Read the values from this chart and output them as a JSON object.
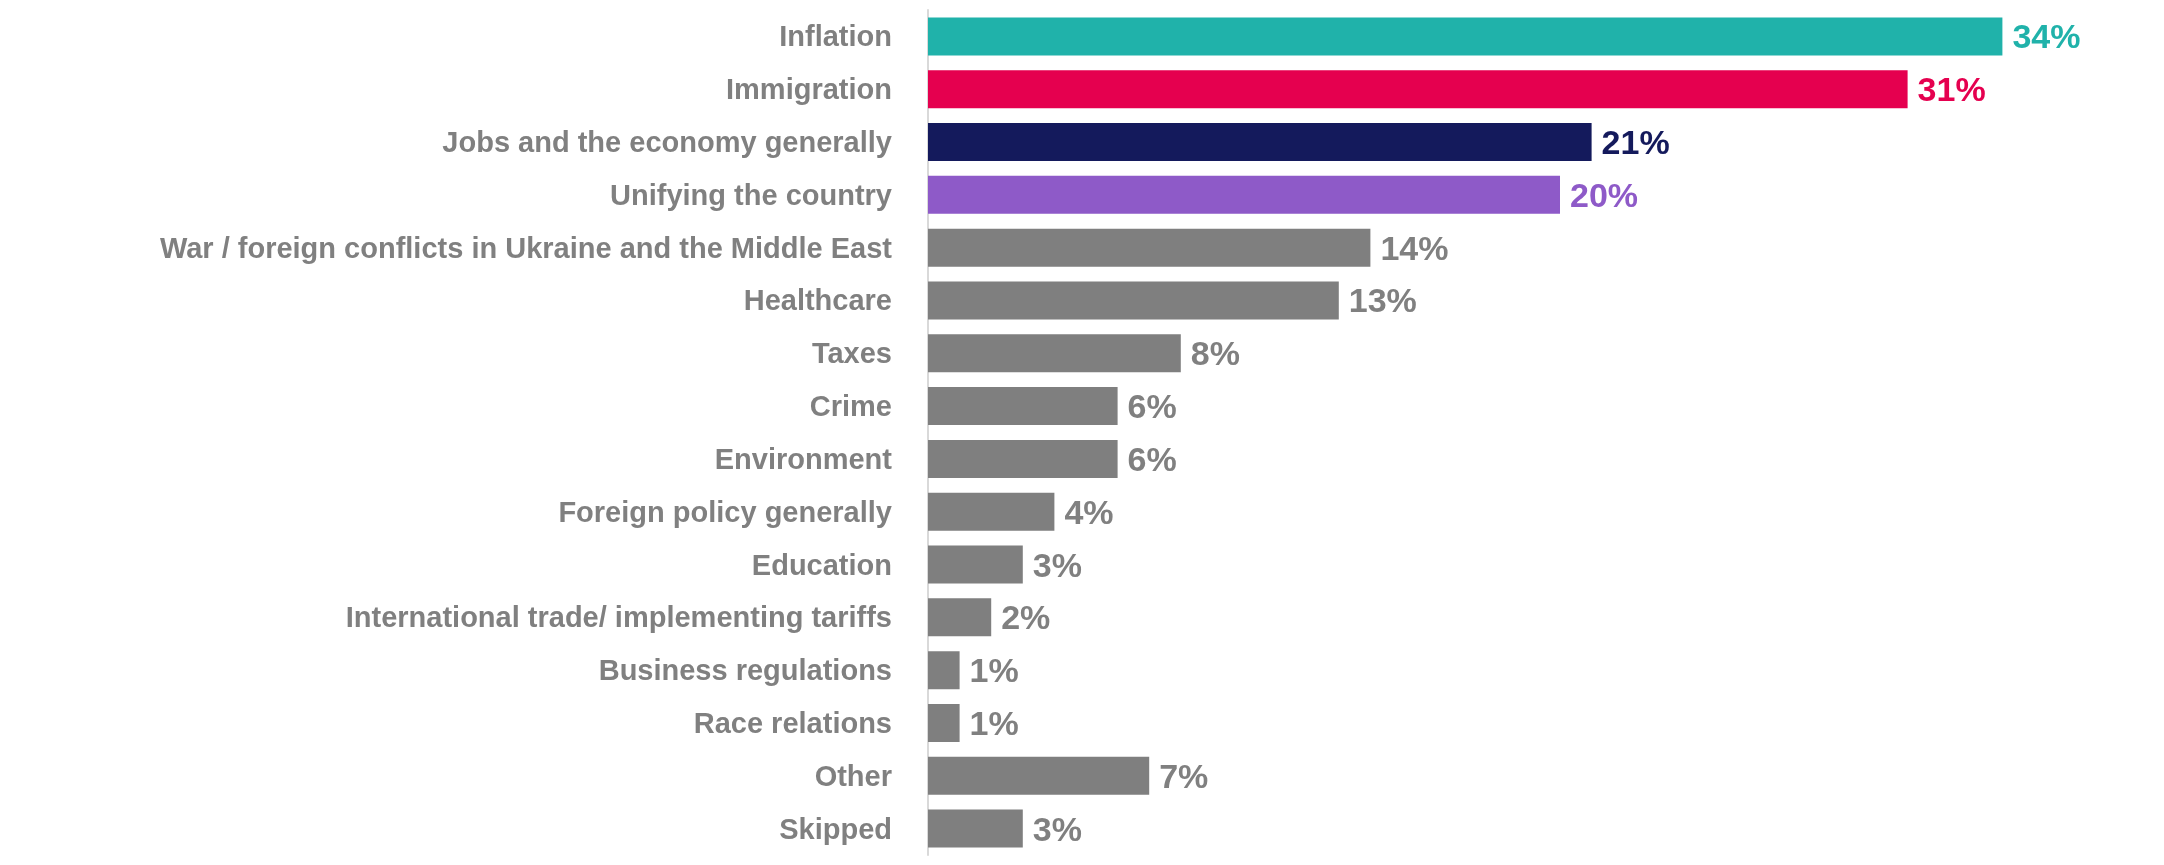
{
  "chart_data": {
    "type": "bar",
    "orientation": "horizontal",
    "categories": [
      "Inflation",
      "Immigration",
      "Jobs and the economy generally",
      "Unifying the country",
      "War / foreign conflicts in Ukraine and the Middle East",
      "Healthcare",
      "Taxes",
      "Crime",
      "Environment",
      "Foreign policy generally",
      "Education",
      "International trade/ implementing tariffs",
      "Business regulations",
      "Race relations",
      "Other",
      "Skipped"
    ],
    "values": [
      34,
      31,
      21,
      20,
      14,
      13,
      8,
      6,
      6,
      4,
      3,
      2,
      1,
      1,
      7,
      3
    ],
    "value_labels": [
      "34%",
      "31%",
      "21%",
      "20%",
      "14%",
      "13%",
      "8%",
      "6%",
      "6%",
      "4%",
      "3%",
      "2%",
      "1%",
      "1%",
      "7%",
      "3%"
    ],
    "colors": [
      "#20b2aa",
      "#e5004f",
      "#141a5c",
      "#8e5ac8",
      "#7f7f7f",
      "#7f7f7f",
      "#7f7f7f",
      "#7f7f7f",
      "#7f7f7f",
      "#7f7f7f",
      "#7f7f7f",
      "#7f7f7f",
      "#7f7f7f",
      "#7f7f7f",
      "#7f7f7f",
      "#7f7f7f"
    ]
  }
}
